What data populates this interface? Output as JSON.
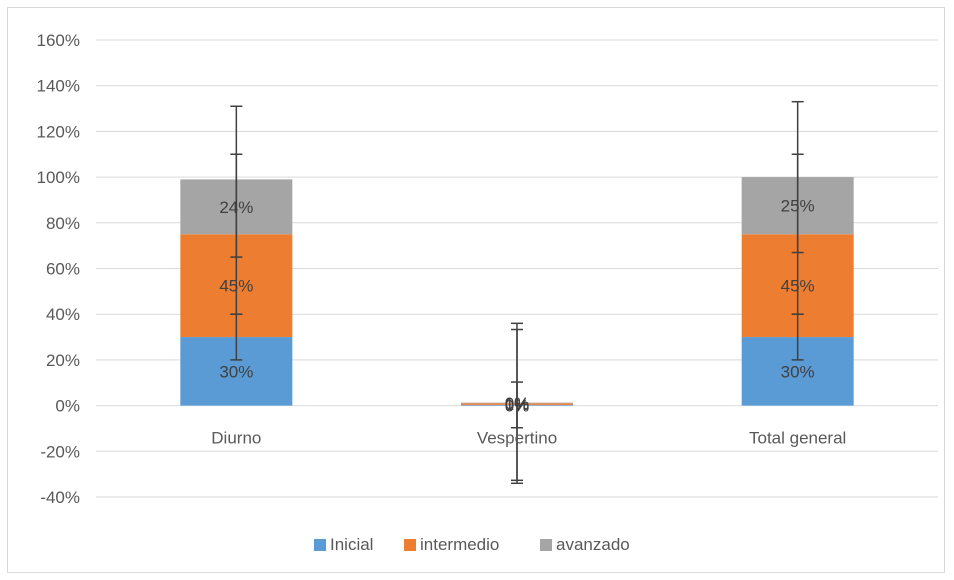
{
  "chart_data": {
    "type": "bar",
    "stacked": true,
    "categories": [
      "Diurno",
      "Vespertino",
      "Total general"
    ],
    "series": [
      {
        "name": "Inicial",
        "color": "#5b9bd5",
        "values": [
          0.3,
          0.003,
          0.3
        ],
        "labels": [
          "30%",
          "0%",
          "30%"
        ],
        "error_low": [
          0.1,
          0.1,
          0.1
        ],
        "error_high": [
          0.1,
          0.1,
          0.1
        ]
      },
      {
        "name": "intermedio",
        "color": "#ed7d31",
        "values": [
          0.45,
          0.007,
          0.45
        ],
        "labels": [
          "45%",
          "1%",
          "45%"
        ],
        "error_low": [
          0.35,
          0.35,
          0.35
        ],
        "error_high": [
          0.35,
          0.35,
          0.35
        ]
      },
      {
        "name": "avanzado",
        "color": "#a5a5a5",
        "values": [
          0.24,
          0.003,
          0.25
        ],
        "labels": [
          "24%",
          "0%",
          "25%"
        ],
        "error_low": [
          0.34,
          0.34,
          0.33
        ],
        "error_high": [
          0.32,
          0.32,
          0.33
        ]
      }
    ],
    "y_ticks": [
      "-40%",
      "-20%",
      "0%",
      "20%",
      "40%",
      "60%",
      "80%",
      "100%",
      "120%",
      "140%",
      "160%"
    ],
    "ylim": [
      -0.4,
      1.6
    ],
    "grid": true,
    "legend_position": "bottom",
    "error_bar_color": "#404040"
  }
}
